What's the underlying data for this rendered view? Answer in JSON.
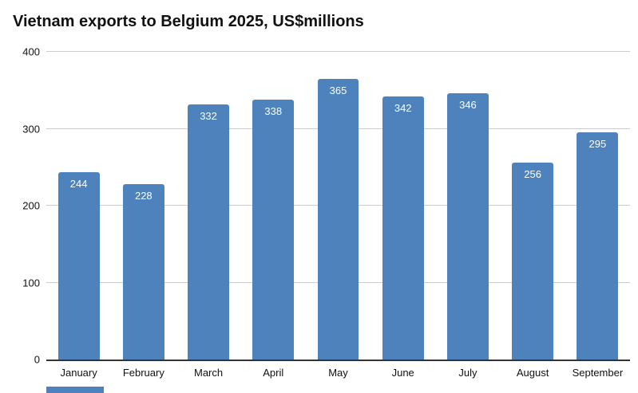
{
  "chart_data": {
    "type": "bar",
    "title": "Vietnam exports to Belgium 2025, US$millions",
    "categories": [
      "January",
      "February",
      "March",
      "April",
      "May",
      "June",
      "July",
      "August",
      "September"
    ],
    "values": [
      244,
      228,
      332,
      338,
      365,
      342,
      346,
      256,
      295
    ],
    "xlabel": "",
    "ylabel": "",
    "ylim": [
      0,
      400
    ],
    "yticks": [
      0,
      100,
      200,
      300,
      400
    ],
    "grid": true,
    "legend": "none",
    "bar_color": "#4d82bc",
    "value_label_color": "#ffffff",
    "gridline_color": "#cccccc",
    "axis_color": "#333333"
  }
}
